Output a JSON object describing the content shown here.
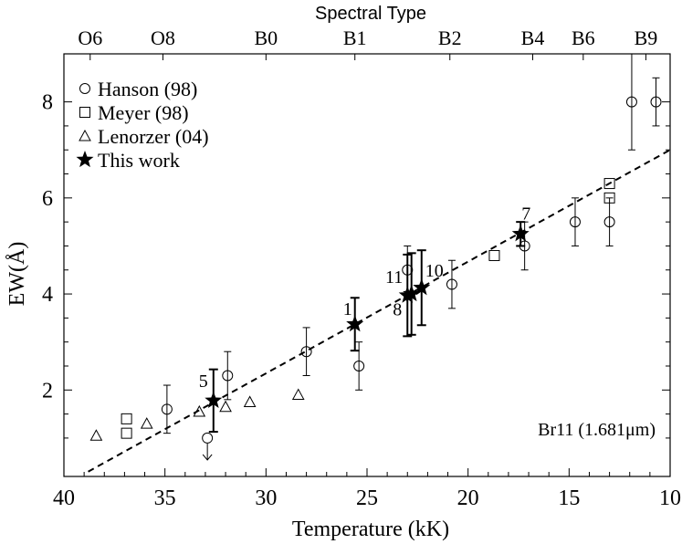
{
  "chart_data": {
    "type": "scatter",
    "xlabel": "Temperature (kK)",
    "ylabel": "EW(Å)",
    "top_axis_title": "Spectral Type",
    "xlim": [
      40,
      10
    ],
    "ylim": [
      0.2,
      9.0
    ],
    "x_ticks": [
      "40",
      "35",
      "30",
      "25",
      "20",
      "15",
      "10"
    ],
    "y_ticks": [
      "2",
      "4",
      "6",
      "8"
    ],
    "top_ticks": [
      {
        "label": "O6",
        "t": 38.7
      },
      {
        "label": "O8",
        "t": 35.1
      },
      {
        "label": "B0",
        "t": 30.0
      },
      {
        "label": "B1",
        "t": 25.6
      },
      {
        "label": "B2",
        "t": 20.9
      },
      {
        "label": "B4",
        "t": 16.8
      },
      {
        "label": "B6",
        "t": 14.3
      },
      {
        "label": "B9",
        "t": 11.2
      }
    ],
    "annotation": "Br11 (1.681μm)",
    "legend": [
      {
        "symbol": "circle",
        "label": "Hanson (98)"
      },
      {
        "symbol": "square",
        "label": "Meyer (98)"
      },
      {
        "symbol": "triangle",
        "label": "Lenorzer (04)"
      },
      {
        "symbol": "star",
        "label": "This work"
      }
    ],
    "fit_line": {
      "style": "dashed",
      "x": [
        38.8,
        10.0
      ],
      "y": [
        0.3,
        7.0
      ]
    },
    "series": [
      {
        "name": "Hanson (98)",
        "marker": "circle",
        "points": [
          {
            "x": 34.9,
            "y": 1.6,
            "yerr": 0.5
          },
          {
            "x": 32.9,
            "y": 1.0,
            "upper_limit": true
          },
          {
            "x": 31.9,
            "y": 2.3,
            "yerr": 0.5
          },
          {
            "x": 28.0,
            "y": 2.8,
            "yerr": 0.5
          },
          {
            "x": 25.4,
            "y": 2.5,
            "yerr": 0.5
          },
          {
            "x": 23.0,
            "y": 4.5,
            "yerr": 0.5
          },
          {
            "x": 20.8,
            "y": 4.2,
            "yerr": 0.5
          },
          {
            "x": 17.2,
            "y": 5.0,
            "yerr": 0.5
          },
          {
            "x": 14.7,
            "y": 5.5,
            "yerr": 0.5
          },
          {
            "x": 13.0,
            "y": 5.5,
            "yerr": 0.5
          },
          {
            "x": 11.9,
            "y": 8.0,
            "yerr": 1.0
          },
          {
            "x": 10.7,
            "y": 8.0,
            "yerr": 0.5
          }
        ]
      },
      {
        "name": "Meyer (98)",
        "marker": "square",
        "points": [
          {
            "x": 36.9,
            "y": 1.4
          },
          {
            "x": 36.9,
            "y": 1.1
          },
          {
            "x": 18.7,
            "y": 4.8
          },
          {
            "x": 13.0,
            "y": 6.3
          },
          {
            "x": 13.0,
            "y": 6.0
          }
        ]
      },
      {
        "name": "Lenorzer (04)",
        "marker": "triangle",
        "points": [
          {
            "x": 38.4,
            "y": 1.05
          },
          {
            "x": 35.9,
            "y": 1.3
          },
          {
            "x": 33.3,
            "y": 1.55
          },
          {
            "x": 32.0,
            "y": 1.65
          },
          {
            "x": 30.8,
            "y": 1.75
          },
          {
            "x": 28.4,
            "y": 1.9
          }
        ]
      },
      {
        "name": "This work",
        "marker": "star",
        "points": [
          {
            "x": 32.6,
            "y": 1.78,
            "yerr": 0.65,
            "label": "5"
          },
          {
            "x": 25.6,
            "y": 3.37,
            "yerr": 0.55,
            "label": "1"
          },
          {
            "x": 23.0,
            "y": 3.97,
            "yerr": 0.85,
            "label": "8"
          },
          {
            "x": 22.8,
            "y": 4.0,
            "yerr": 0.85,
            "label": "11"
          },
          {
            "x": 22.3,
            "y": 4.13,
            "yerr": 0.78,
            "label": "10"
          },
          {
            "x": 17.4,
            "y": 5.25,
            "yerr": 0.25,
            "label": "7"
          }
        ]
      }
    ]
  }
}
